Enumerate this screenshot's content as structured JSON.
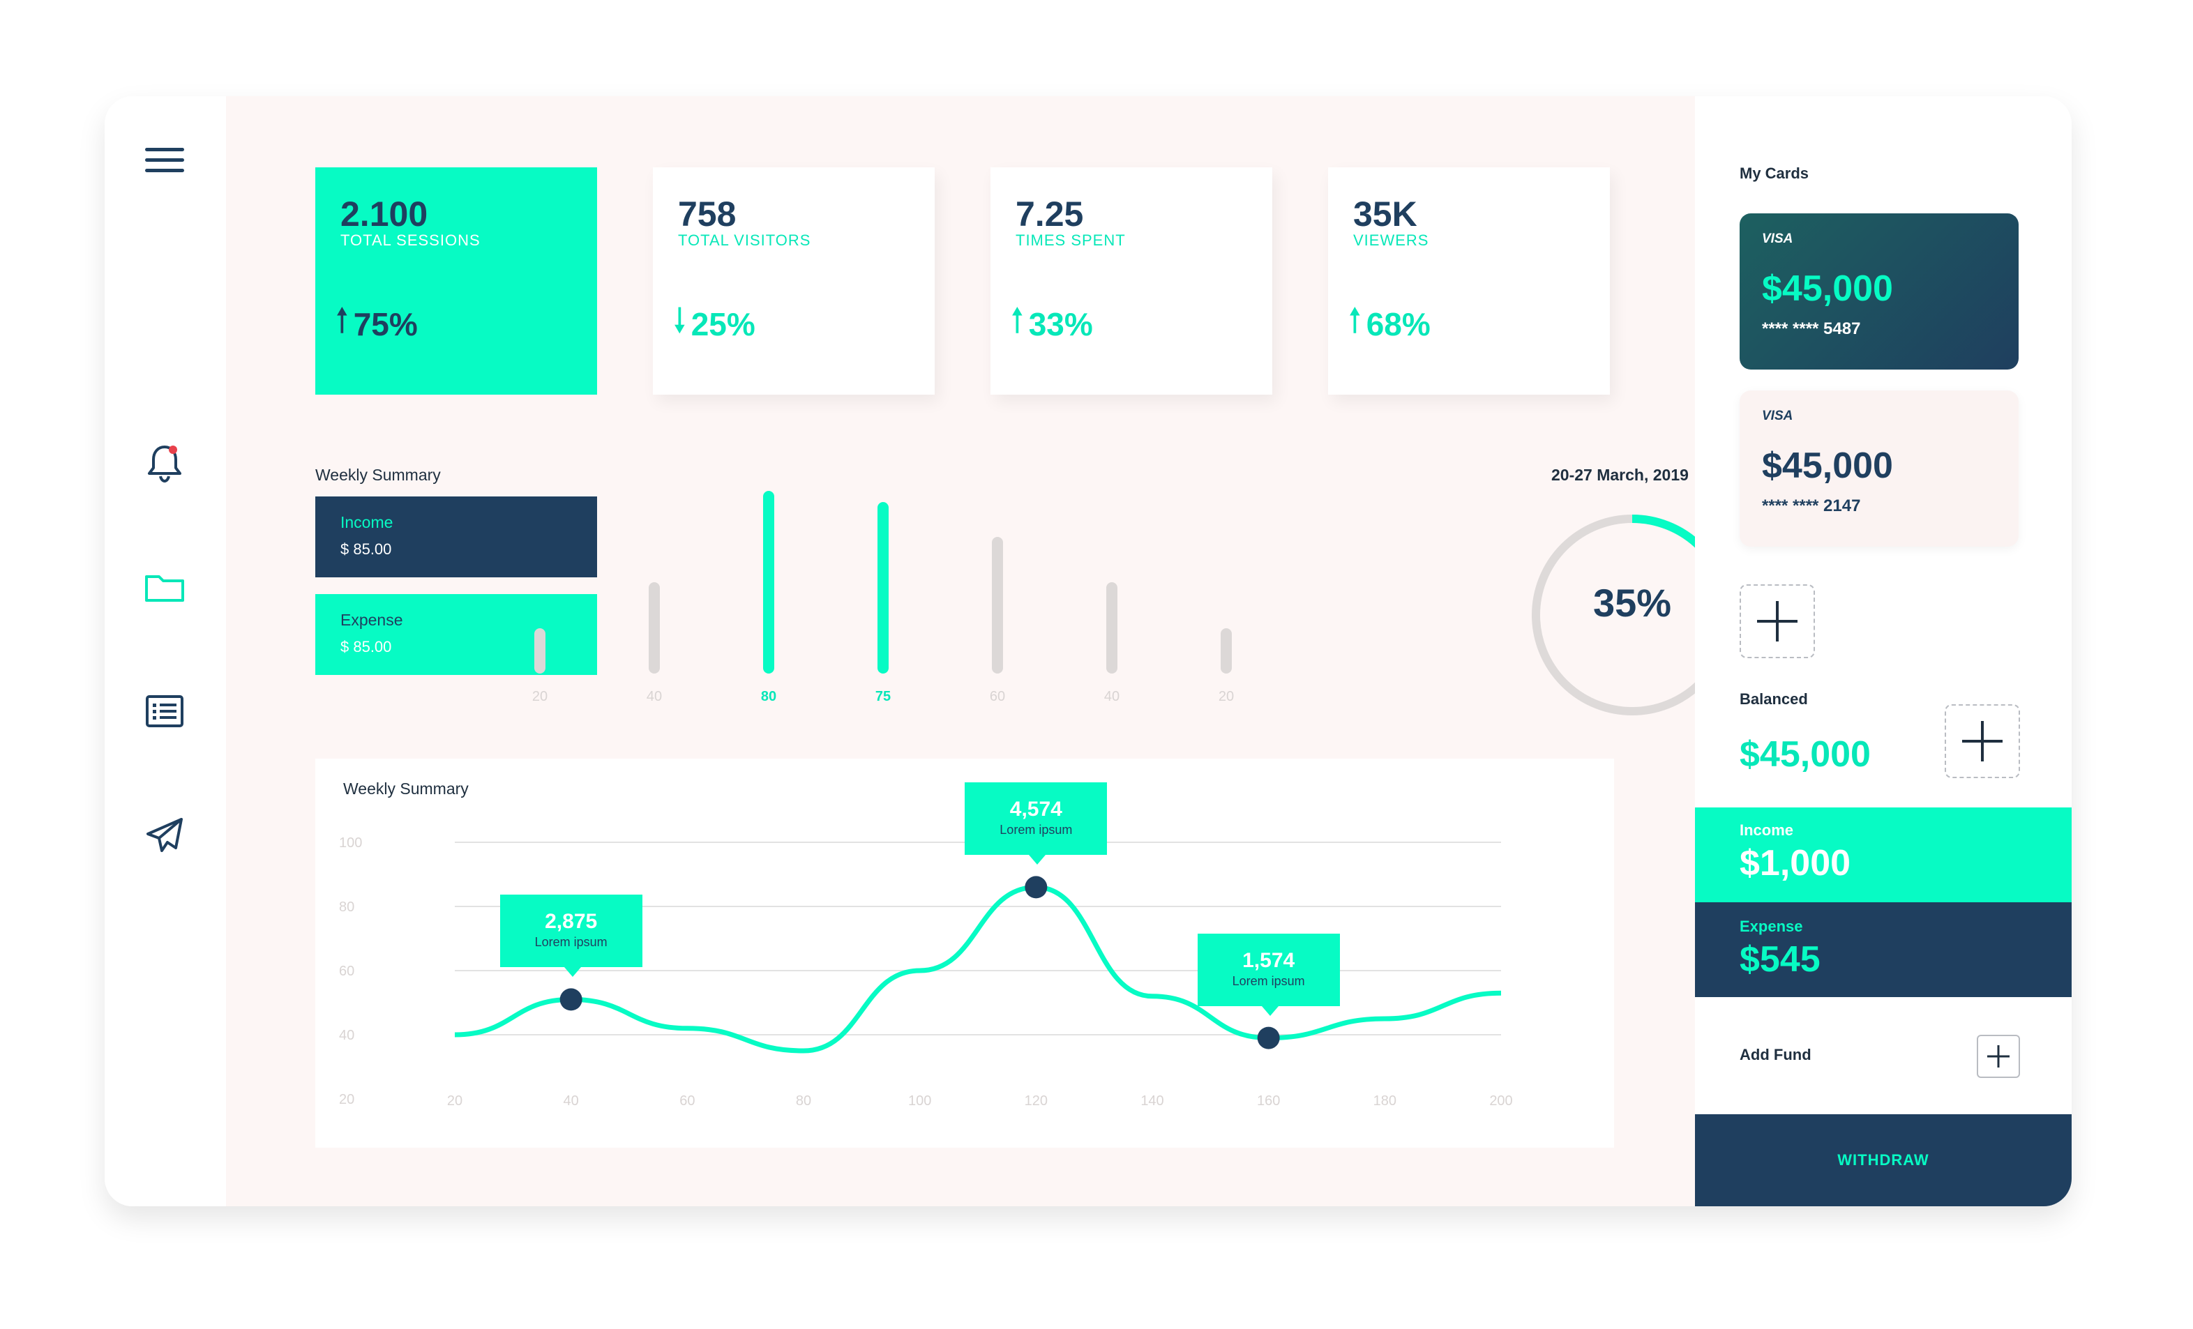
{
  "stats": [
    {
      "value": "2.100",
      "label": "TOTAL SESSIONS",
      "change": "75%",
      "direction": "up"
    },
    {
      "value": "758",
      "label": "TOTAL VISITORS",
      "change": "25%",
      "direction": "down"
    },
    {
      "value": "7.25",
      "label": "TIMES SPENT",
      "change": "33%",
      "direction": "up"
    },
    {
      "value": "35K",
      "label": "VIEWERS",
      "change": "68%",
      "direction": "up"
    }
  ],
  "weekly": {
    "title": "Weekly Summary",
    "income_label": "Income",
    "income_value": "$ 85.00",
    "expense_label": "Expense",
    "expense_value": "$ 85.00",
    "bars": [
      {
        "label": "20",
        "value": 20
      },
      {
        "label": "40",
        "value": 40
      },
      {
        "label": "80",
        "value": 80
      },
      {
        "label": "75",
        "value": 75
      },
      {
        "label": "60",
        "value": 60
      },
      {
        "label": "40",
        "value": 40
      },
      {
        "label": "20",
        "value": 20
      }
    ],
    "date_range": "20-27 March, 2019",
    "donut_percent": 35,
    "donut_label": "35%"
  },
  "chart_data": {
    "type": "line",
    "title": "Weekly Summary",
    "x": [
      20,
      40,
      60,
      80,
      100,
      120,
      140,
      160,
      180,
      200
    ],
    "x_ticks": [
      "20",
      "40",
      "60",
      "80",
      "100",
      "120",
      "140",
      "160",
      "180",
      "200"
    ],
    "y_ticks": [
      "100",
      "80",
      "60",
      "40",
      "20"
    ],
    "ylim": [
      20,
      100
    ],
    "xlim": [
      20,
      200
    ],
    "series": [
      {
        "values": [
          40,
          51,
          42,
          35,
          60,
          86,
          52,
          39,
          45,
          53
        ]
      }
    ],
    "annotations": [
      {
        "x": 40,
        "y": 51,
        "value": "2,875",
        "sub": "Lorem ipsum"
      },
      {
        "x": 120,
        "y": 86,
        "value": "4,574",
        "sub": "Lorem ipsum"
      },
      {
        "x": 160,
        "y": 39,
        "value": "1,574",
        "sub": "Lorem ipsum"
      }
    ]
  },
  "right": {
    "title": "My Cards",
    "cards": [
      {
        "brand": "VISA",
        "amount": "$45,000",
        "number": "**** **** 5487"
      },
      {
        "brand": "VISA",
        "amount": "$45,000",
        "number": "**** **** 2147"
      }
    ],
    "balanced_label": "Balanced",
    "balanced_value": "$45,000",
    "income_label": "Income",
    "income_value": "$1,000",
    "expense_label": "Expense",
    "expense_value": "$545",
    "add_fund": "Add Fund",
    "withdraw": "WITHDRAW"
  },
  "colors": {
    "accent": "#07fbc4",
    "navy": "#1f3f5f",
    "bg": "#fdf6f5"
  },
  "sidebar_icons": [
    "menu-icon",
    "bell-icon",
    "folder-icon",
    "list-icon",
    "send-icon"
  ]
}
